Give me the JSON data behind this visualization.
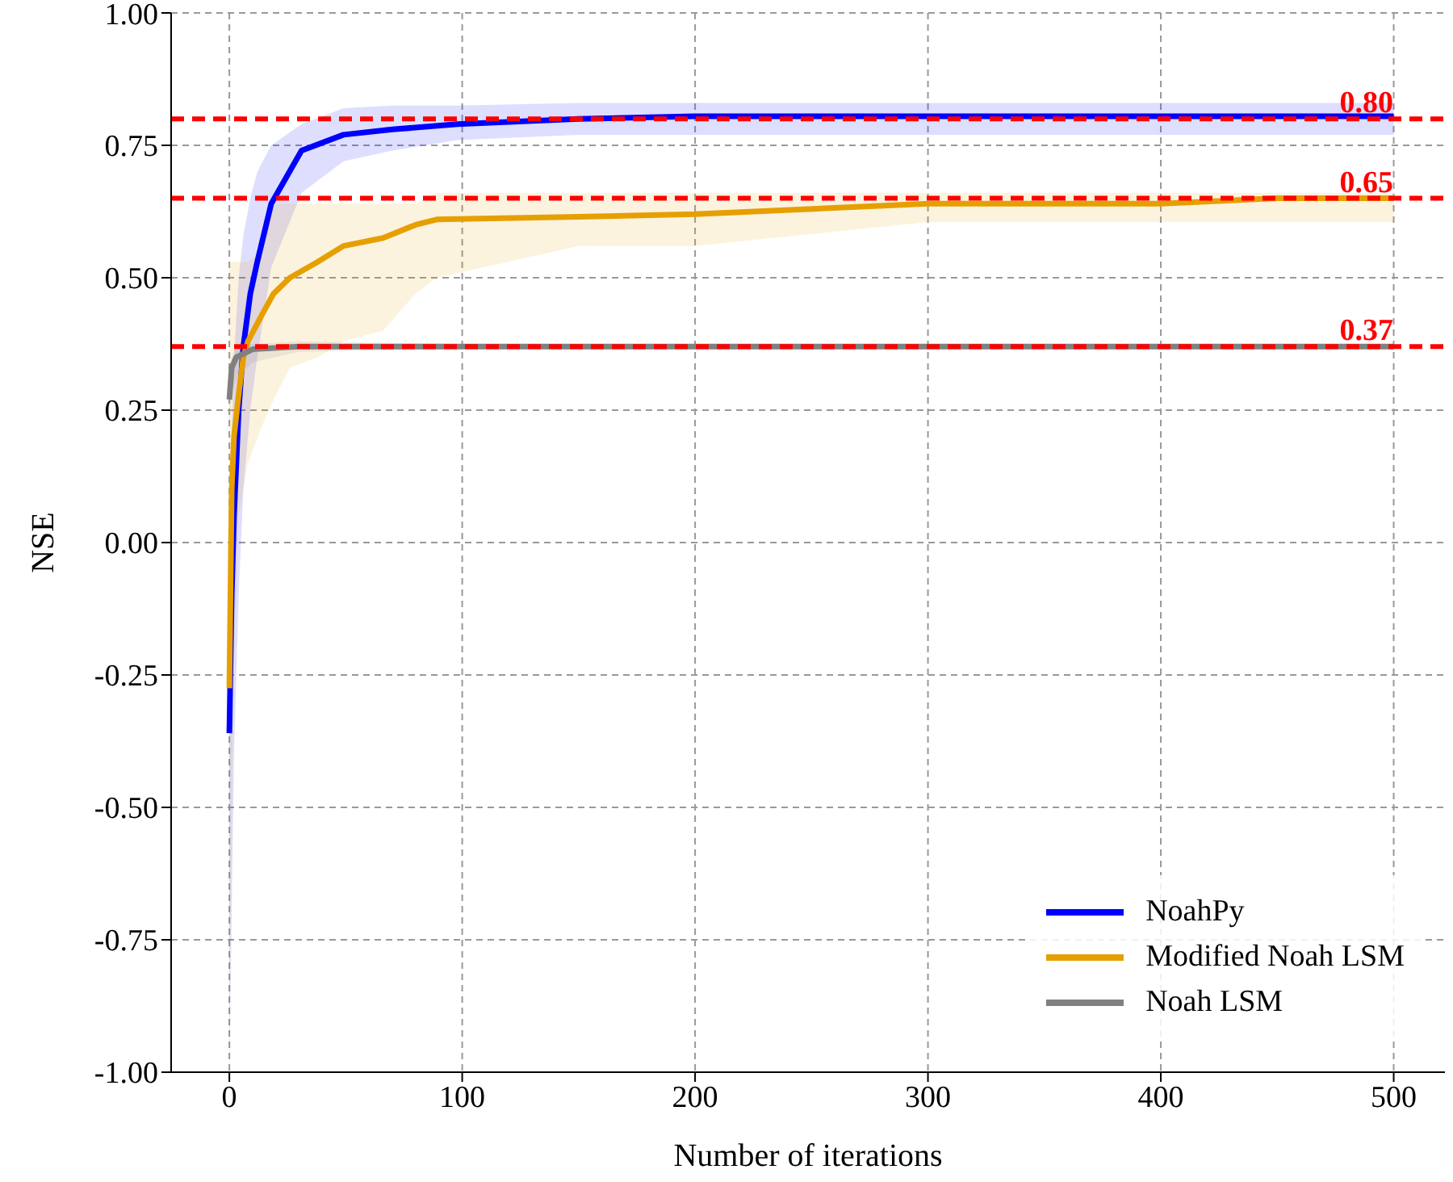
{
  "chart_data": {
    "type": "line",
    "xlabel": "Number of iterations",
    "ylabel": "NSE",
    "xlim": [
      -25,
      522
    ],
    "ylim": [
      -1,
      1
    ],
    "xticks": [
      0,
      100,
      200,
      300,
      400,
      500
    ],
    "yticks": [
      {
        "value": -1,
        "label": "-1.00"
      },
      {
        "value": -0.75,
        "label": "-0.75"
      },
      {
        "value": -0.5,
        "label": "-0.50"
      },
      {
        "value": -0.25,
        "label": "-0.25"
      },
      {
        "value": 0,
        "label": "0.00"
      },
      {
        "value": 0.25,
        "label": "0.25"
      },
      {
        "value": 0.5,
        "label": "0.50"
      },
      {
        "value": 0.75,
        "label": "0.75"
      },
      {
        "value": 1,
        "label": "1.00"
      }
    ],
    "grid": true,
    "legend": "bottom right",
    "line_style": "solid",
    "marker": "none",
    "series": [
      {
        "name": "NoahPy",
        "color": "#0000ff",
        "x": [
          0,
          1,
          2,
          4,
          6,
          9,
          12,
          18,
          31,
          49,
          70,
          98,
          150,
          200,
          300,
          400,
          500
        ],
        "values": [
          -0.36,
          -0.1,
          0.05,
          0.25,
          0.37,
          0.47,
          0.53,
          0.64,
          0.74,
          0.77,
          0.78,
          0.79,
          0.8,
          0.805,
          0.805,
          0.805,
          0.805
        ],
        "lower": [
          -1,
          -0.7,
          -0.4,
          -0.1,
          0.1,
          0.25,
          0.35,
          0.52,
          0.66,
          0.72,
          0.74,
          0.76,
          0.77,
          0.77,
          0.77,
          0.77,
          0.77
        ],
        "upper": [
          -0.1,
          0.2,
          0.35,
          0.5,
          0.58,
          0.65,
          0.7,
          0.75,
          0.79,
          0.82,
          0.825,
          0.825,
          0.83,
          0.83,
          0.83,
          0.83,
          0.83
        ]
      },
      {
        "name": "Modified Noah LSM",
        "color": "#e69f00",
        "x": [
          0,
          1,
          2,
          4,
          6,
          8,
          14,
          19,
          26,
          38,
          49,
          66,
          80,
          89,
          150,
          200,
          300,
          400,
          450,
          500
        ],
        "values": [
          -0.275,
          0.1,
          0.2,
          0.28,
          0.35,
          0.38,
          0.43,
          0.47,
          0.5,
          0.53,
          0.56,
          0.575,
          0.6,
          0.61,
          0.615,
          0.62,
          0.64,
          0.64,
          0.65,
          0.65
        ],
        "lower": [
          -0.91,
          -0.5,
          -0.2,
          0.05,
          0.1,
          0.15,
          0.22,
          0.27,
          0.33,
          0.35,
          0.38,
          0.4,
          0.47,
          0.5,
          0.56,
          0.56,
          0.605,
          0.605,
          0.605,
          0.605
        ],
        "upper": [
          0.53,
          0.53,
          0.53,
          0.53,
          0.53,
          0.53,
          0.55,
          0.64,
          0.64,
          0.64,
          0.64,
          0.64,
          0.64,
          0.66,
          0.66,
          0.66,
          0.66,
          0.66,
          0.66,
          0.66
        ]
      },
      {
        "name": "Noah LSM",
        "color": "#808080",
        "x": [
          0,
          1,
          3,
          10,
          30,
          100,
          500
        ],
        "values": [
          0.27,
          0.33,
          0.35,
          0.365,
          0.37,
          0.37,
          0.37
        ],
        "lower": [
          0.22,
          0.28,
          0.31,
          0.34,
          0.36,
          0.365,
          0.365
        ],
        "upper": [
          0.3,
          0.35,
          0.37,
          0.375,
          0.38,
          0.375,
          0.375
        ]
      }
    ],
    "ref_lines": [
      {
        "axis": "y",
        "value": 0.8,
        "label": "0.80",
        "color": "#ff0000",
        "line_style": "dashed"
      },
      {
        "axis": "y",
        "value": 0.65,
        "label": "0.65",
        "color": "#ff0000",
        "line_style": "dashed"
      },
      {
        "axis": "y",
        "value": 0.37,
        "label": "0.37",
        "color": "#ff0000",
        "line_style": "dashed"
      }
    ]
  }
}
